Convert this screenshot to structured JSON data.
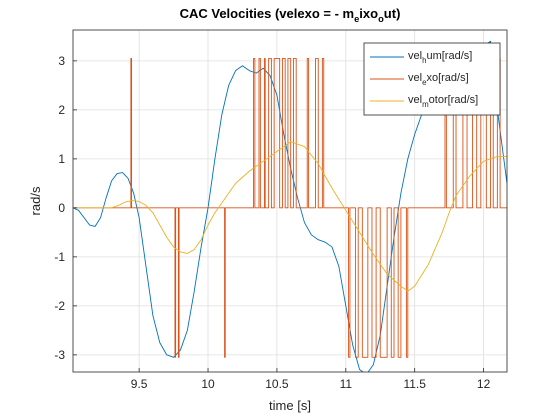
{
  "chart_data": {
    "type": "line",
    "title": [
      "CAC Velocities (velexo = - m",
      "e",
      "ixo",
      "o",
      "ut)"
    ],
    "xlabel": "time [s]",
    "ylabel": "rad/s",
    "xlim": [
      9.02,
      12.17
    ],
    "ylim": [
      -3.35,
      3.63
    ],
    "xticks": [
      9.5,
      10,
      10.5,
      11,
      11.5,
      12
    ],
    "yticks": [
      -3,
      -2,
      -1,
      0,
      1,
      2,
      3
    ],
    "grid": true,
    "legend": "top-right",
    "series": [
      {
        "name": [
          "vel",
          "h",
          "um[rad/s]"
        ],
        "color": "#0072bd",
        "x": [
          9.02,
          9.06,
          9.1,
          9.14,
          9.18,
          9.22,
          9.26,
          9.3,
          9.34,
          9.38,
          9.42,
          9.46,
          9.5,
          9.55,
          9.6,
          9.65,
          9.7,
          9.75,
          9.8,
          9.85,
          9.9,
          9.95,
          10.0,
          10.05,
          10.1,
          10.15,
          10.2,
          10.25,
          10.3,
          10.35,
          10.4,
          10.45,
          10.5,
          10.55,
          10.6,
          10.65,
          10.7,
          10.75,
          10.8,
          10.85,
          10.9,
          10.95,
          11.0,
          11.05,
          11.1,
          11.15,
          11.2,
          11.25,
          11.3,
          11.35,
          11.4,
          11.45,
          11.5,
          11.55,
          11.6,
          11.65,
          11.7,
          11.75,
          11.8,
          11.85,
          11.9,
          11.95,
          12.0,
          12.05,
          12.1,
          12.17
        ],
        "values": [
          0,
          -0.05,
          -0.2,
          -0.35,
          -0.38,
          -0.2,
          0.2,
          0.55,
          0.7,
          0.72,
          0.6,
          0.3,
          -0.2,
          -1.2,
          -2.2,
          -2.75,
          -3.0,
          -3.05,
          -2.9,
          -2.5,
          -1.7,
          -0.8,
          0,
          1.0,
          1.9,
          2.5,
          2.8,
          2.9,
          2.8,
          2.75,
          2.85,
          2.7,
          2.3,
          1.5,
          0.8,
          0.2,
          -0.3,
          -0.55,
          -0.65,
          -0.7,
          -0.8,
          -1.2,
          -2.0,
          -2.8,
          -3.3,
          -3.4,
          -3.2,
          -2.6,
          -1.6,
          -0.6,
          0.3,
          1.0,
          1.5,
          1.9,
          2.3,
          2.6,
          2.7,
          2.75,
          2.8,
          2.8,
          3.0,
          3.1,
          3.3,
          3.4,
          2.0,
          0.5
        ]
      },
      {
        "name": [
          "vel",
          "e",
          "xo[rad/s]"
        ],
        "color": "#d95319",
        "x": [
          9.02,
          9.44,
          9.44,
          9.445,
          9.445,
          9.76,
          9.76,
          9.765,
          9.765,
          9.785,
          9.785,
          9.79,
          9.79,
          10.12,
          10.12,
          10.125,
          10.125,
          10.33,
          10.33,
          10.34,
          10.34,
          10.37,
          10.37,
          10.38,
          10.38,
          10.41,
          10.41,
          10.415,
          10.415,
          10.44,
          10.44,
          10.46,
          10.46,
          10.48,
          10.48,
          10.52,
          10.52,
          10.54,
          10.54,
          10.56,
          10.56,
          10.58,
          10.58,
          10.6,
          10.6,
          10.62,
          10.62,
          10.64,
          10.64,
          10.72,
          10.72,
          10.73,
          10.73,
          10.78,
          10.78,
          10.8,
          10.8,
          10.83,
          10.83,
          10.84,
          10.84,
          11.02,
          11.02,
          11.03,
          11.03,
          11.07,
          11.07,
          11.09,
          11.09,
          11.12,
          11.12,
          11.16,
          11.16,
          11.19,
          11.19,
          11.22,
          11.22,
          11.25,
          11.25,
          11.3,
          11.3,
          11.33,
          11.33,
          11.35,
          11.35,
          11.38,
          11.38,
          11.4,
          11.4,
          11.44,
          11.44,
          11.45,
          11.45,
          11.72,
          11.72,
          11.73,
          11.73,
          11.78,
          11.78,
          11.8,
          11.8,
          11.85,
          11.85,
          11.88,
          11.88,
          11.92,
          11.92,
          11.95,
          11.95,
          11.98,
          11.98,
          12.02,
          12.02,
          12.05,
          12.05,
          12.07,
          12.07,
          12.1,
          12.1,
          12.12,
          12.12,
          12.17
        ],
        "values": [
          0,
          0,
          3.05,
          3.05,
          0,
          0,
          -3.05,
          -3.05,
          0,
          0,
          -3.05,
          -3.05,
          0,
          0,
          -3.05,
          -3.05,
          0,
          0,
          3.05,
          3.05,
          0,
          0,
          3.05,
          3.05,
          0,
          0,
          3.05,
          3.05,
          0,
          0,
          3.05,
          3.05,
          0,
          0,
          3.05,
          3.05,
          0,
          0,
          3.05,
          3.05,
          0,
          0,
          3.05,
          3.05,
          0,
          0,
          3.05,
          3.05,
          0,
          0,
          3.05,
          3.05,
          0,
          0,
          3.05,
          3.05,
          0,
          0,
          3.05,
          3.05,
          0,
          0,
          -3.05,
          -3.05,
          0,
          0,
          -3.05,
          -3.05,
          0,
          0,
          -3.05,
          -3.05,
          0,
          0,
          -3.05,
          -3.05,
          0,
          0,
          -3.05,
          -3.05,
          0,
          0,
          -3.05,
          -3.05,
          0,
          0,
          -3.05,
          -3.05,
          0,
          0,
          -3.05,
          -3.05,
          0,
          0,
          3.05,
          3.05,
          0,
          0,
          3.05,
          3.05,
          0,
          0,
          3.05,
          3.05,
          0,
          0,
          3.05,
          3.05,
          0,
          0,
          3.05,
          3.05,
          0,
          0,
          3.05,
          3.05,
          0,
          0,
          3.05,
          3.05,
          0,
          0
        ]
      },
      {
        "name": [
          "vel",
          "m",
          "otor[rad/s]"
        ],
        "color": "#edb120",
        "x": [
          9.02,
          9.3,
          9.35,
          9.4,
          9.45,
          9.5,
          9.55,
          9.6,
          9.65,
          9.7,
          9.75,
          9.8,
          9.85,
          9.9,
          9.95,
          10.0,
          10.05,
          10.1,
          10.15,
          10.2,
          10.3,
          10.4,
          10.5,
          10.6,
          10.7,
          10.8,
          10.9,
          11.0,
          11.1,
          11.2,
          11.3,
          11.4,
          11.45,
          11.5,
          11.6,
          11.7,
          11.75,
          11.8,
          11.9,
          12.0,
          12.1,
          12.17
        ],
        "values": [
          0,
          0,
          0.05,
          0.12,
          0.15,
          0.13,
          0.05,
          -0.1,
          -0.35,
          -0.6,
          -0.8,
          -0.9,
          -0.93,
          -0.85,
          -0.65,
          -0.35,
          -0.1,
          0.1,
          0.3,
          0.5,
          0.75,
          0.95,
          1.15,
          1.35,
          1.25,
          0.9,
          0.4,
          -0.05,
          -0.5,
          -0.95,
          -1.35,
          -1.6,
          -1.7,
          -1.6,
          -1.15,
          -0.5,
          -0.1,
          0.25,
          0.65,
          0.95,
          1.05,
          1.05
        ]
      }
    ]
  }
}
